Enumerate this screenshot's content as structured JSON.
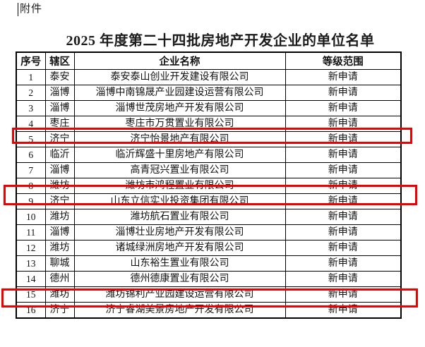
{
  "page": {
    "attachment_label": "附件"
  },
  "title": "2025 年度第二十四批房地产开发企业的单位名单",
  "table": {
    "headers": [
      "序号",
      "辖区",
      "企业名称",
      "等级范围"
    ],
    "rows": [
      {
        "no": "1",
        "district": "泰安",
        "company": "泰安泰山创业开发建设有限公司",
        "status": "新申请",
        "highlighted": false
      },
      {
        "no": "2",
        "district": "淄博",
        "company": "淄博中南锦晟产业园建设运营有限公司",
        "status": "新申请",
        "highlighted": false
      },
      {
        "no": "3",
        "district": "淄博",
        "company": "淄博世茂房地产开发有限公司",
        "status": "新申请",
        "highlighted": false
      },
      {
        "no": "4",
        "district": "枣庄",
        "company": "枣庄市万贯置业有限公司",
        "status": "新申请",
        "highlighted": false
      },
      {
        "no": "5",
        "district": "济宁",
        "company": "济宁怡景地产有限公司",
        "status": "新申请",
        "highlighted": true
      },
      {
        "no": "6",
        "district": "临沂",
        "company": "临沂辉盛十里房地产有限公司",
        "status": "新申请",
        "highlighted": false
      },
      {
        "no": "7",
        "district": "淄博",
        "company": "高青冠兴置业有限公司",
        "status": "新申请",
        "highlighted": false
      },
      {
        "no": "8",
        "district": "潍坊",
        "company": "潍坊市鸿程置业有限公司",
        "status": "新申请",
        "highlighted": false
      },
      {
        "no": "9",
        "district": "济宁",
        "company": "山东立信实业投资集团有限公司",
        "status": "新申请",
        "highlighted": true
      },
      {
        "no": "10",
        "district": "潍坊",
        "company": "潍坊航石置业有限公司",
        "status": "新申请",
        "highlighted": false
      },
      {
        "no": "11",
        "district": "淄博",
        "company": "淄博壮业房地产开发有限公司",
        "status": "新申请",
        "highlighted": false
      },
      {
        "no": "12",
        "district": "潍坊",
        "company": "诸城绿洲房地产开发有限公司",
        "status": "新申请",
        "highlighted": false
      },
      {
        "no": "13",
        "district": "聊城",
        "company": "山东裕生置业有限公司",
        "status": "新申请",
        "highlighted": false
      },
      {
        "no": "14",
        "district": "德州",
        "company": "德州德康置业有限公司",
        "status": "新申请",
        "highlighted": false
      },
      {
        "no": "15",
        "district": "潍坊",
        "company": "潍坊锦利产业园建设运营有限公司",
        "status": "新申请",
        "highlighted": false
      },
      {
        "no": "16",
        "district": "济宁",
        "company": "济宁睿湖美景房地产开发有限公司",
        "status": "新申请",
        "highlighted": true
      }
    ]
  },
  "highlight": {
    "color": "#ee0000",
    "highlighted_row_numbers": [
      "5",
      "9",
      "16"
    ]
  }
}
